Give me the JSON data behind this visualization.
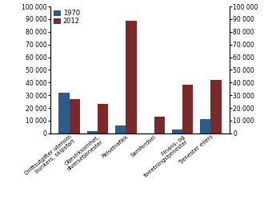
{
  "categories": [
    "Driftsutgifter utenom\nbunkers, skipsfart",
    "Oljevirksomhet,\ndiversetjenester",
    "Reisetrafikk",
    "Samferdsel",
    "Finans- og\nforretningstjenester",
    "Tjenester ellers"
  ],
  "values_1970": [
    32000,
    2000,
    6000,
    0,
    3000,
    11000
  ],
  "values_2012": [
    27000,
    23000,
    89000,
    13000,
    38000,
    42000
  ],
  "color_1970": "#2b5c8a",
  "color_2012": "#7b2a2a",
  "ylim": [
    0,
    100000
  ],
  "yticks": [
    0,
    10000,
    20000,
    30000,
    40000,
    50000,
    60000,
    70000,
    80000,
    90000,
    100000
  ],
  "legend_labels": [
    "1970",
    "2012"
  ],
  "bar_width": 0.38
}
